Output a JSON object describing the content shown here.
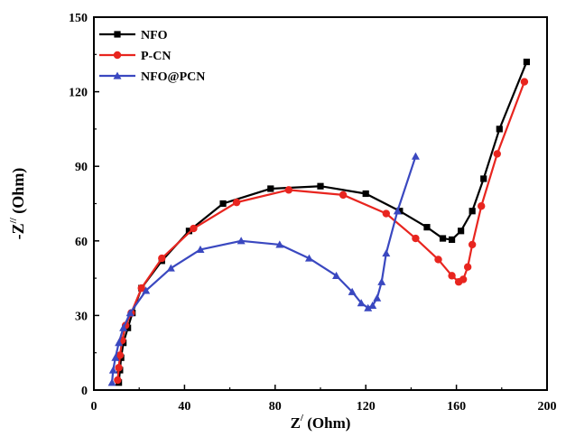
{
  "chart_data": {
    "type": "line",
    "xlabel": {
      "main": "Z",
      "sup": "/",
      "unit": " (Ohm)"
    },
    "ylabel": {
      "pre": "-Z",
      "sup": "//",
      "unit": " (Ohm)"
    },
    "xlim": [
      0,
      200
    ],
    "ylim": [
      0,
      150
    ],
    "xticks": [
      "0",
      "40",
      "80",
      "120",
      "160",
      "200"
    ],
    "yticks": [
      "0",
      "30",
      "60",
      "90",
      "120",
      "150"
    ],
    "legend_position": "top-left",
    "grid": false,
    "series": [
      {
        "name": "NFO",
        "color": "#000000",
        "marker": "square",
        "x": [
          11,
          11.5,
          12,
          13,
          15,
          17,
          21,
          30,
          42,
          57,
          78,
          100,
          120,
          135,
          147,
          154,
          158,
          162,
          167,
          172,
          179,
          191
        ],
        "y": [
          3,
          8,
          13,
          19,
          25,
          31,
          41,
          52,
          64,
          75,
          81,
          82,
          79,
          72,
          65.5,
          61,
          60.5,
          64,
          72,
          85,
          105,
          132
        ]
      },
      {
        "name": "P-CN",
        "color": "#e8251f",
        "marker": "circle",
        "x": [
          10.5,
          11,
          11.5,
          12.5,
          14,
          16.5,
          21,
          30,
          44,
          63,
          86,
          110,
          129,
          142,
          152,
          158,
          161,
          163,
          165,
          167,
          171,
          178,
          190
        ],
        "y": [
          4,
          9,
          14,
          20,
          26,
          31,
          41,
          53,
          65,
          75.5,
          80.5,
          78.5,
          71,
          61,
          52.5,
          46,
          43.5,
          44.5,
          49.5,
          58.5,
          74,
          95,
          124
        ]
      },
      {
        "name": "NFO@PCN",
        "color": "#3a48c0",
        "marker": "triangle",
        "x": [
          8,
          8.5,
          9.5,
          11,
          13,
          16,
          23,
          34,
          47,
          65,
          82,
          95,
          107,
          114,
          118,
          121,
          123,
          125,
          127,
          129,
          134,
          142
        ],
        "y": [
          3,
          8,
          13,
          19,
          25,
          31,
          40,
          49,
          56.5,
          60,
          58.5,
          53,
          46,
          39.5,
          35,
          33,
          34,
          37,
          43.5,
          55,
          72,
          94
        ]
      }
    ]
  }
}
